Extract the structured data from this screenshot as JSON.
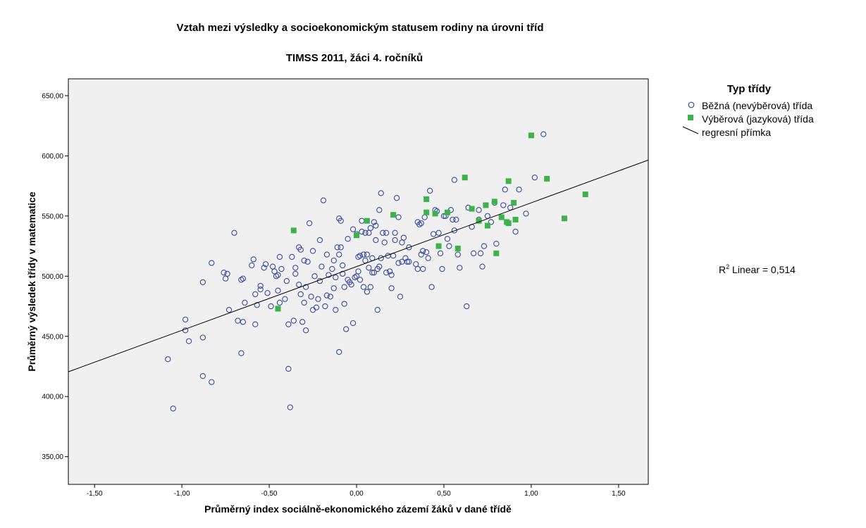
{
  "chart_data": {
    "type": "scatter",
    "title": "Vztah mezi výsledky a socioekonomickým statusem rodiny na úrovni tříd",
    "subtitle": "TIMSS 2011, žáci 4. ročníků",
    "xlabel": "Průměrný index sociálně-ekonomického zázemí žáků v dané třídě",
    "ylabel": "Průměrný výsledek třídy v matematice",
    "xlim": [
      -1.65,
      1.67
    ],
    "ylim": [
      327,
      664
    ],
    "x_ticks": [
      -1.5,
      -1.0,
      -0.5,
      0.0,
      0.5,
      1.0,
      1.5
    ],
    "x_tick_labels": [
      "-1,50",
      "-1,00",
      "-0,50",
      "0,00",
      "0,50",
      "1,00",
      "1,50"
    ],
    "y_ticks": [
      350,
      400,
      450,
      500,
      550,
      600,
      650
    ],
    "y_tick_labels": [
      "350,00",
      "400,00",
      "450,00",
      "500,00",
      "550,00",
      "600,00",
      "650,00"
    ],
    "grid": false,
    "plot_background": "#f0f0f0",
    "legend": {
      "title": "Typ třídy",
      "placement": "right",
      "entries": [
        {
          "label": "Běžná (nevýběrová) třída",
          "marker": "circle"
        },
        {
          "label": "Výběrová (jazyková) třída",
          "marker": "square"
        },
        {
          "label": "regresní přímka",
          "marker": "line"
        }
      ]
    },
    "annotation": {
      "prefix": "R",
      "superscript": "2",
      "suffix": " Linear = 0,514"
    },
    "regression_line": {
      "slope": 53.0,
      "intercept": 508.0
    },
    "series": [
      {
        "name": "Běžná (nevýběrová) třída",
        "marker": "circle",
        "color": "#3a4a9e",
        "points": [
          [
            -1.08,
            431
          ],
          [
            -1.05,
            390
          ],
          [
            -0.98,
            455
          ],
          [
            -0.98,
            464
          ],
          [
            -0.96,
            446
          ],
          [
            -0.88,
            495
          ],
          [
            -0.88,
            449
          ],
          [
            -0.88,
            417
          ],
          [
            -0.83,
            511
          ],
          [
            -0.83,
            412
          ],
          [
            -0.76,
            503
          ],
          [
            -0.75,
            498
          ],
          [
            -0.74,
            502
          ],
          [
            -0.73,
            472
          ],
          [
            -0.7,
            536
          ],
          [
            -0.68,
            463
          ],
          [
            -0.66,
            436
          ],
          [
            -0.66,
            497
          ],
          [
            -0.65,
            498
          ],
          [
            -0.65,
            462
          ],
          [
            -0.64,
            478
          ],
          [
            -0.6,
            509
          ],
          [
            -0.59,
            514
          ],
          [
            -0.58,
            485
          ],
          [
            -0.58,
            460
          ],
          [
            -0.57,
            476
          ],
          [
            -0.55,
            492
          ],
          [
            -0.55,
            489
          ],
          [
            -0.53,
            507
          ],
          [
            -0.52,
            510
          ],
          [
            -0.51,
            486
          ],
          [
            -0.49,
            475
          ],
          [
            -0.48,
            508
          ],
          [
            -0.47,
            504
          ],
          [
            -0.46,
            500
          ],
          [
            -0.45,
            501
          ],
          [
            -0.45,
            488
          ],
          [
            -0.44,
            478
          ],
          [
            -0.44,
            516
          ],
          [
            -0.43,
            506
          ],
          [
            -0.41,
            481
          ],
          [
            -0.4,
            496
          ],
          [
            -0.39,
            460
          ],
          [
            -0.39,
            423
          ],
          [
            -0.38,
            391
          ],
          [
            -0.37,
            516
          ],
          [
            -0.36,
            463
          ],
          [
            -0.35,
            507
          ],
          [
            -0.35,
            502
          ],
          [
            -0.33,
            493
          ],
          [
            -0.33,
            524
          ],
          [
            -0.32,
            522
          ],
          [
            -0.32,
            485
          ],
          [
            -0.31,
            462
          ],
          [
            -0.3,
            513
          ],
          [
            -0.3,
            478
          ],
          [
            -0.29,
            491
          ],
          [
            -0.29,
            455
          ],
          [
            -0.28,
            512
          ],
          [
            -0.27,
            544
          ],
          [
            -0.26,
            483
          ],
          [
            -0.25,
            472
          ],
          [
            -0.25,
            521
          ],
          [
            -0.24,
            500
          ],
          [
            -0.23,
            474
          ],
          [
            -0.22,
            481
          ],
          [
            -0.21,
            530
          ],
          [
            -0.21,
            496
          ],
          [
            -0.2,
            508
          ],
          [
            -0.19,
            563
          ],
          [
            -0.18,
            475
          ],
          [
            -0.17,
            518
          ],
          [
            -0.17,
            484
          ],
          [
            -0.16,
            501
          ],
          [
            -0.15,
            483
          ],
          [
            -0.14,
            506
          ],
          [
            -0.13,
            490
          ],
          [
            -0.13,
            513
          ],
          [
            -0.12,
            472
          ],
          [
            -0.12,
            499
          ],
          [
            -0.11,
            524
          ],
          [
            -0.1,
            548
          ],
          [
            -0.1,
            518
          ],
          [
            -0.1,
            437
          ],
          [
            -0.09,
            546
          ],
          [
            -0.09,
            524
          ],
          [
            -0.08,
            502
          ],
          [
            -0.08,
            509
          ],
          [
            -0.07,
            477
          ],
          [
            -0.07,
            491
          ],
          [
            -0.06,
            456
          ],
          [
            -0.05,
            531
          ],
          [
            -0.05,
            497
          ],
          [
            -0.04,
            495
          ],
          [
            -0.03,
            493
          ],
          [
            -0.02,
            461
          ],
          [
            -0.02,
            539
          ],
          [
            -0.01,
            499
          ],
          [
            0.0,
            500
          ],
          [
            0.0,
            535
          ],
          [
            0.01,
            516
          ],
          [
            0.01,
            504
          ],
          [
            0.02,
            517
          ],
          [
            0.02,
            497
          ],
          [
            0.03,
            546
          ],
          [
            0.03,
            537
          ],
          [
            0.04,
            518
          ],
          [
            0.04,
            491
          ],
          [
            0.05,
            536
          ],
          [
            0.05,
            513
          ],
          [
            0.06,
            487
          ],
          [
            0.06,
            518
          ],
          [
            0.07,
            507
          ],
          [
            0.07,
            536
          ],
          [
            0.08,
            491
          ],
          [
            0.08,
            540
          ],
          [
            0.09,
            515
          ],
          [
            0.09,
            503
          ],
          [
            0.1,
            503
          ],
          [
            0.1,
            545
          ],
          [
            0.11,
            542
          ],
          [
            0.11,
            530
          ],
          [
            0.12,
            472
          ],
          [
            0.12,
            506
          ],
          [
            0.13,
            508
          ],
          [
            0.13,
            555
          ],
          [
            0.14,
            515
          ],
          [
            0.14,
            569
          ],
          [
            0.15,
            536
          ],
          [
            0.16,
            528
          ],
          [
            0.17,
            503
          ],
          [
            0.17,
            536
          ],
          [
            0.18,
            517
          ],
          [
            0.19,
            504
          ],
          [
            0.2,
            501
          ],
          [
            0.2,
            490
          ],
          [
            0.21,
            517
          ],
          [
            0.22,
            530
          ],
          [
            0.22,
            536
          ],
          [
            0.23,
            565
          ],
          [
            0.24,
            511
          ],
          [
            0.24,
            549
          ],
          [
            0.25,
            483
          ],
          [
            0.26,
            512
          ],
          [
            0.26,
            528
          ],
          [
            0.27,
            532
          ],
          [
            0.28,
            515
          ],
          [
            0.29,
            512
          ],
          [
            0.3,
            524
          ],
          [
            0.3,
            512
          ],
          [
            0.34,
            510
          ],
          [
            0.35,
            506
          ],
          [
            0.35,
            545
          ],
          [
            0.36,
            543
          ],
          [
            0.37,
            544
          ],
          [
            0.37,
            518
          ],
          [
            0.38,
            521
          ],
          [
            0.38,
            506
          ],
          [
            0.39,
            549
          ],
          [
            0.4,
            520
          ],
          [
            0.41,
            515
          ],
          [
            0.42,
            571
          ],
          [
            0.43,
            491
          ],
          [
            0.44,
            535
          ],
          [
            0.45,
            555
          ],
          [
            0.46,
            554
          ],
          [
            0.47,
            536
          ],
          [
            0.48,
            519
          ],
          [
            0.49,
            506
          ],
          [
            0.5,
            550
          ],
          [
            0.51,
            550
          ],
          [
            0.52,
            531
          ],
          [
            0.53,
            525
          ],
          [
            0.54,
            555
          ],
          [
            0.55,
            547
          ],
          [
            0.56,
            538
          ],
          [
            0.56,
            580
          ],
          [
            0.57,
            547
          ],
          [
            0.58,
            518
          ],
          [
            0.59,
            507
          ],
          [
            0.63,
            475
          ],
          [
            0.64,
            557
          ],
          [
            0.66,
            541
          ],
          [
            0.67,
            519
          ],
          [
            0.7,
            555
          ],
          [
            0.7,
            547
          ],
          [
            0.71,
            519
          ],
          [
            0.72,
            508
          ],
          [
            0.73,
            525
          ],
          [
            0.75,
            550
          ],
          [
            0.77,
            545
          ],
          [
            0.79,
            561
          ],
          [
            0.8,
            527
          ],
          [
            0.84,
            559
          ],
          [
            0.85,
            572
          ],
          [
            0.88,
            557
          ],
          [
            0.91,
            537
          ],
          [
            0.93,
            572
          ],
          [
            0.97,
            552
          ],
          [
            1.02,
            582
          ],
          [
            1.07,
            618
          ]
        ]
      },
      {
        "name": "Výběrová (jazyková) třída",
        "marker": "square",
        "color": "#3cb24a",
        "points": [
          [
            -0.36,
            538
          ],
          [
            -0.45,
            473
          ],
          [
            0.0,
            534
          ],
          [
            0.06,
            546
          ],
          [
            0.21,
            551
          ],
          [
            0.4,
            564
          ],
          [
            0.4,
            553
          ],
          [
            0.45,
            552
          ],
          [
            0.47,
            525
          ],
          [
            0.52,
            553
          ],
          [
            0.58,
            523
          ],
          [
            0.62,
            582
          ],
          [
            0.66,
            556
          ],
          [
            0.7,
            546
          ],
          [
            0.74,
            559
          ],
          [
            0.75,
            542
          ],
          [
            0.79,
            562
          ],
          [
            0.8,
            519
          ],
          [
            0.83,
            549
          ],
          [
            0.86,
            545
          ],
          [
            0.87,
            579
          ],
          [
            0.87,
            544
          ],
          [
            0.9,
            561
          ],
          [
            0.91,
            547
          ],
          [
            1.0,
            617
          ],
          [
            1.09,
            581
          ],
          [
            1.19,
            548
          ],
          [
            1.31,
            568
          ]
        ]
      }
    ]
  }
}
